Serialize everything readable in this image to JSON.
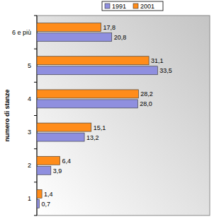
{
  "chart_data": {
    "type": "bar",
    "orientation": "horizontal",
    "y_label": "numero di stanze",
    "categories": [
      "1",
      "2",
      "3",
      "4",
      "5",
      "6 e più"
    ],
    "series": [
      {
        "name": "1991",
        "color": "#8f8fdf",
        "values": [
          0.7,
          3.9,
          13.2,
          28.0,
          33.5,
          20.8
        ],
        "value_labels": [
          "0,7",
          "3,9",
          "13,2",
          "28,0",
          "33,5",
          "20,8"
        ]
      },
      {
        "name": "2001",
        "color": "#ff8c1a",
        "values": [
          1.4,
          6.4,
          15.1,
          28.2,
          31.1,
          17.8
        ],
        "value_labels": [
          "1,4",
          "6,4",
          "15,1",
          "28,2",
          "31,1",
          "17,8"
        ]
      }
    ],
    "xlim": [
      0,
      48
    ],
    "tick_labels": "y",
    "data_labels": true,
    "legend": "top",
    "grid": false
  }
}
